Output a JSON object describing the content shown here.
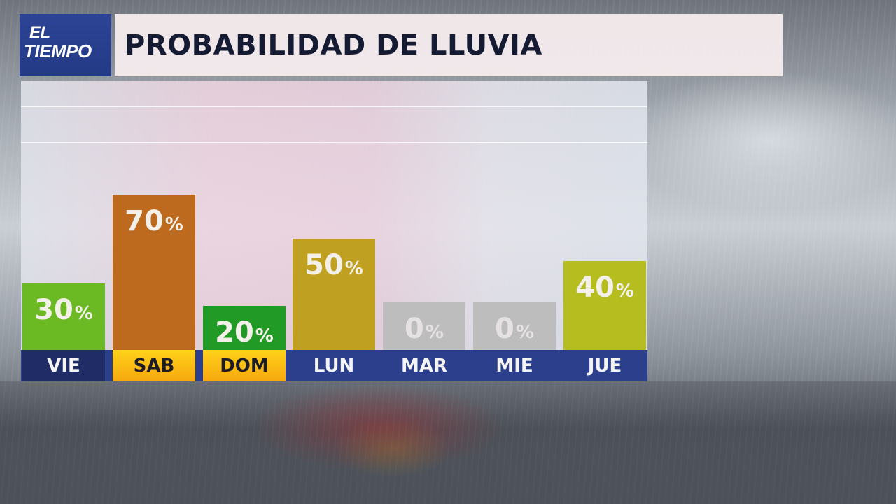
{
  "logo": {
    "line1": "EL",
    "line2": "TIEMPO"
  },
  "title": "PROBABILIDAD DE LLUVIA",
  "percent_symbol": "%",
  "bars": [
    {
      "day": "VIE",
      "value": 30,
      "label": "30",
      "color": "#6cba23",
      "day_style": "dark"
    },
    {
      "day": "SAB",
      "value": 70,
      "label": "70",
      "color": "#bd6a1e",
      "day_style": "highlight"
    },
    {
      "day": "DOM",
      "value": 20,
      "label": "20",
      "color": "#219a26",
      "day_style": "highlight"
    },
    {
      "day": "LUN",
      "value": 50,
      "label": "50",
      "color": "#c0a020",
      "day_style": "normal"
    },
    {
      "day": "MAR",
      "value": 0,
      "label": "0",
      "color": "#bdbdbd",
      "day_style": "normal"
    },
    {
      "day": "MIE",
      "value": 0,
      "label": "0",
      "color": "#bdbdbd",
      "day_style": "normal"
    },
    {
      "day": "JUE",
      "value": 40,
      "label": "40",
      "color": "#b6bd1e",
      "day_style": "normal"
    }
  ],
  "colors": {
    "logo_bg": "#2d4496",
    "title_text": "#141b33",
    "day_strip": "#2b3f8c",
    "day_highlight": "#ffd21a"
  },
  "chart_data": {
    "type": "bar",
    "title": "PROBABILIDAD DE LLUVIA",
    "categories": [
      "VIE",
      "SAB",
      "DOM",
      "LUN",
      "MAR",
      "MIE",
      "JUE"
    ],
    "values": [
      30,
      70,
      20,
      50,
      0,
      0,
      40
    ],
    "value_labels": [
      "30%",
      "70%",
      "20%",
      "50%",
      "0%",
      "0%",
      "40%"
    ],
    "xlabel": "",
    "ylabel": "Probabilidad de lluvia (%)",
    "ylim": [
      0,
      100
    ],
    "grid": true,
    "legend": null,
    "bar_colors": [
      "#6cba23",
      "#bd6a1e",
      "#219a26",
      "#c0a020",
      "#bdbdbd",
      "#bdbdbd",
      "#b6bd1e"
    ]
  }
}
